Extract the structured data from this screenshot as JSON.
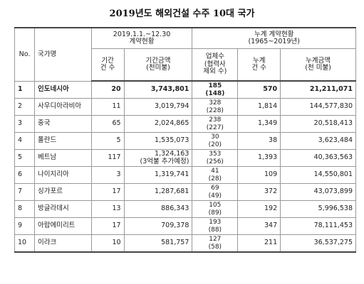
{
  "title": "2019년도 해외건설 수주 10대 국가",
  "table": {
    "header_top": [
      "No.",
      "국가명",
      "2019.1.1.~12.30\n계약현황",
      "누계 계약현황\n(1965~2019년)"
    ],
    "header_sub": [
      "기간\n건 수",
      "기간금액\n(천미불)",
      "업체수\n(협력사\n제외 수)",
      "누계\n건 수",
      "누계금액\n(천 미불)"
    ],
    "rows": [
      [
        "1",
        "인도네시아",
        "20",
        "3,743,801",
        "185\n(148)",
        "570",
        "21,211,071"
      ],
      [
        "2",
        "사우디아라비아",
        "11",
        "3,019,794",
        "328\n(228)",
        "1,814",
        "144,577,830"
      ],
      [
        "3",
        "중국",
        "65",
        "2,024,865",
        "238\n(227)",
        "1,349",
        "20,518,413"
      ],
      [
        "4",
        "폴란드",
        "5",
        "1,535,073",
        "30\n(20)",
        "38",
        "3,623,484"
      ],
      [
        "5",
        "베트남",
        "117",
        "1,324,163\n(3억불 추가예정)",
        "353\n(256)",
        "1,393",
        "40,363,563"
      ],
      [
        "6",
        "나이지리아",
        "3",
        "1,319,741",
        "41\n(28)",
        "109",
        "14,550,801"
      ],
      [
        "7",
        "싱가포르",
        "17",
        "1,287,681",
        "69\n(49)",
        "372",
        "43,073,899"
      ],
      [
        "8",
        "방글라데시",
        "13",
        "886,343",
        "105\n(89)",
        "192",
        "5,996,538"
      ],
      [
        "9",
        "아랍에미리트",
        "17",
        "709,378",
        "193\n(88)",
        "347",
        "78,111,453"
      ],
      [
        "10",
        "이라크",
        "10",
        "581,757",
        "127\n(58)",
        "211",
        "36,537,275"
      ]
    ]
  }
}
